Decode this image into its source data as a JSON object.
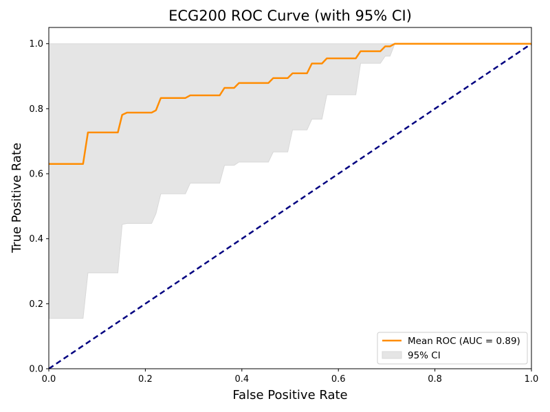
{
  "chart_data": {
    "type": "line",
    "title": "ECG200 ROC Curve (with 95% CI)",
    "xlabel": "False Positive Rate",
    "ylabel": "True Positive Rate",
    "xlim": [
      0.0,
      1.0
    ],
    "ylim": [
      0.0,
      1.05
    ],
    "xticks": [
      "0.0",
      "0.2",
      "0.4",
      "0.6",
      "0.8",
      "1.0"
    ],
    "yticks": [
      "0.0",
      "0.2",
      "0.4",
      "0.6",
      "0.8",
      "1.0"
    ],
    "legend_position": "lower-right",
    "grid": false,
    "series": [
      {
        "name": "Mean ROC (AUC = 0.89)",
        "kind": "line",
        "color": "#ff8c00",
        "x": [
          0.0,
          0.071,
          0.081,
          0.143,
          0.152,
          0.162,
          0.213,
          0.222,
          0.232,
          0.283,
          0.293,
          0.354,
          0.364,
          0.384,
          0.394,
          0.455,
          0.465,
          0.495,
          0.505,
          0.535,
          0.545,
          0.566,
          0.576,
          0.636,
          0.646,
          0.687,
          0.697,
          0.707,
          0.717,
          1.0
        ],
        "y": [
          0.63,
          0.63,
          0.727,
          0.727,
          0.781,
          0.788,
          0.788,
          0.795,
          0.833,
          0.833,
          0.841,
          0.841,
          0.864,
          0.864,
          0.879,
          0.879,
          0.894,
          0.894,
          0.909,
          0.909,
          0.939,
          0.939,
          0.955,
          0.955,
          0.977,
          0.977,
          0.992,
          0.992,
          1.0,
          1.0
        ]
      },
      {
        "name": "95% CI",
        "kind": "band",
        "color": "#e5e5e5",
        "x": [
          0.0,
          0.071,
          0.081,
          0.143,
          0.152,
          0.162,
          0.213,
          0.222,
          0.232,
          0.283,
          0.293,
          0.354,
          0.364,
          0.384,
          0.394,
          0.455,
          0.465,
          0.495,
          0.505,
          0.535,
          0.545,
          0.566,
          0.576,
          0.636,
          0.646,
          0.687,
          0.697,
          0.707,
          0.717,
          1.0
        ],
        "lower": [
          0.155,
          0.155,
          0.295,
          0.295,
          0.444,
          0.447,
          0.447,
          0.477,
          0.538,
          0.538,
          0.571,
          0.571,
          0.626,
          0.626,
          0.636,
          0.636,
          0.667,
          0.667,
          0.735,
          0.735,
          0.768,
          0.768,
          0.843,
          0.843,
          0.94,
          0.94,
          0.962,
          0.962,
          1.0,
          1.0
        ],
        "upper": [
          1.0,
          1.0,
          1.0,
          1.0,
          1.0,
          1.0,
          1.0,
          1.0,
          1.0,
          1.0,
          1.0,
          1.0,
          1.0,
          1.0,
          1.0,
          1.0,
          1.0,
          1.0,
          1.0,
          1.0,
          1.0,
          1.0,
          1.0,
          1.0,
          1.0,
          1.0,
          1.0,
          1.0,
          1.0,
          1.0
        ]
      },
      {
        "name": "",
        "kind": "reference",
        "color": "#000080",
        "x": [
          0.0,
          1.0
        ],
        "y": [
          0.0,
          1.0
        ]
      }
    ],
    "legend": [
      {
        "label": "Mean ROC (AUC = 0.89)",
        "style": "line",
        "color": "#ff8c00"
      },
      {
        "label": "95% CI",
        "style": "patch",
        "color": "#e5e5e5"
      }
    ]
  }
}
